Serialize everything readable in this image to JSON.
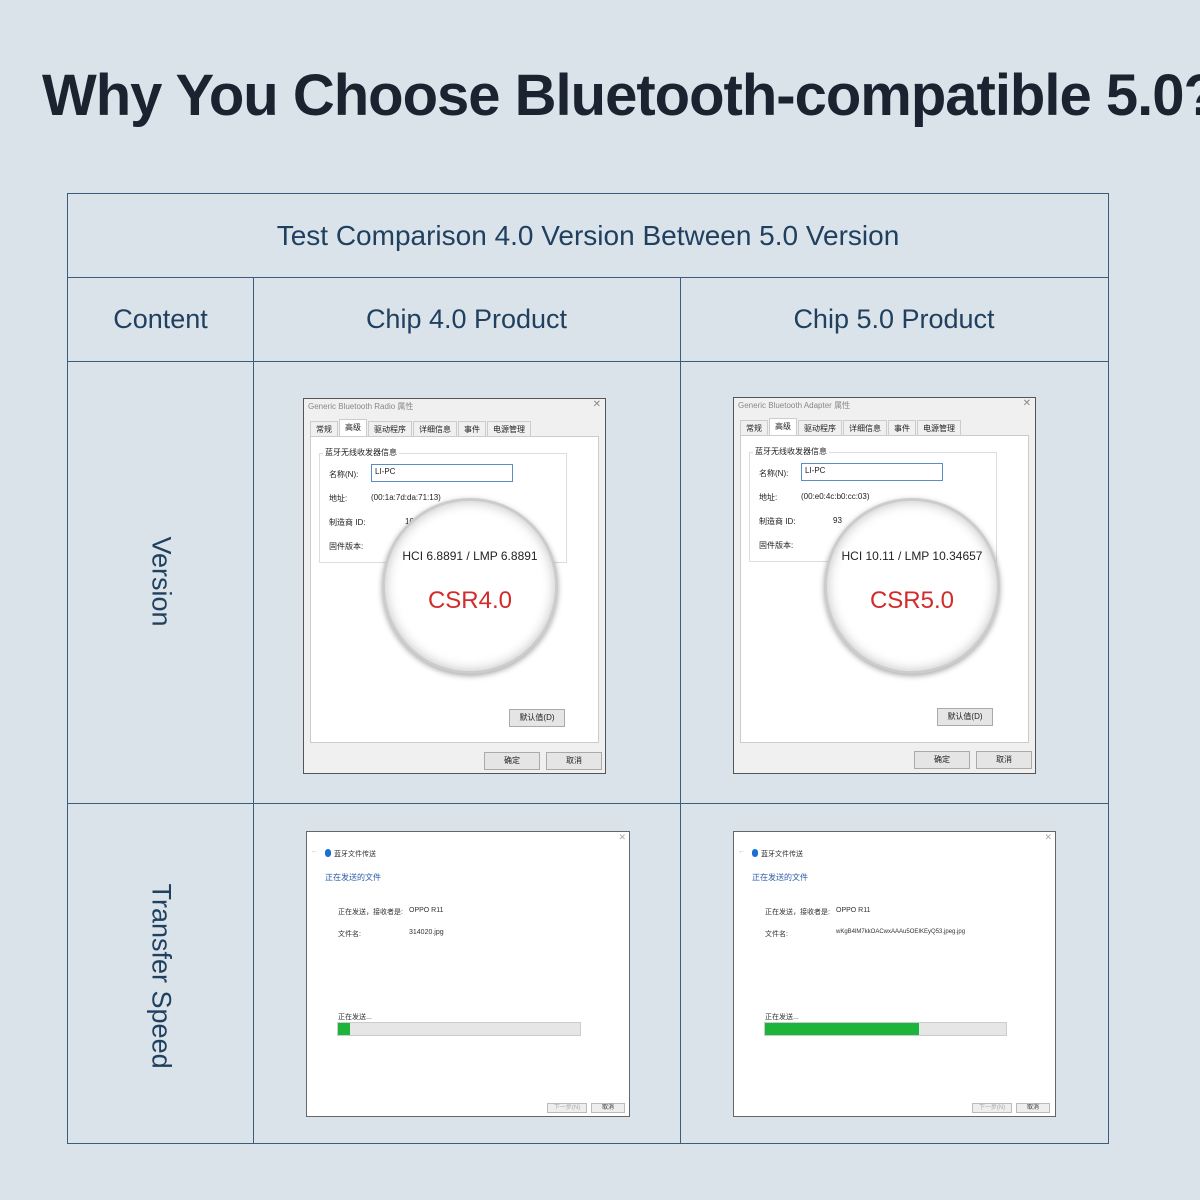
{
  "title": "Why You Choose Bluetooth-compatible 5.0?",
  "table": {
    "caption": "Test Comparison 4.0 Version Between 5.0 Version",
    "headers": [
      "Content",
      "Chip 4.0 Product",
      "Chip 5.0 Product"
    ],
    "rows": [
      "Version",
      "Transfer Speed"
    ]
  },
  "dialog_common": {
    "tabs": [
      "常规",
      "高级",
      "驱动程序",
      "详细信息",
      "事件",
      "电源管理"
    ],
    "group": "蓝牙无线收发器信息",
    "name_label": "名称(N):",
    "addr_label": "地址:",
    "mfr_label": "制造商 ID:",
    "fw_label": "固件版本:",
    "default_btn": "默认值(D)",
    "ok_btn": "确定",
    "cancel_btn": "取消"
  },
  "v4": {
    "caption": "Generic Bluetooth Radio 属性",
    "name": "LI-PC",
    "addr": "(00:1a:7d:da:71:13)",
    "mfr": "10",
    "hci": "HCI 6.8891  /  LMP 6.8891",
    "csr": "CSR4.0"
  },
  "v5": {
    "caption": "Generic Bluetooth Adapter 属性",
    "name": "LI-PC",
    "addr": "(00:e0:4c:b0:cc:03)",
    "mfr": "93",
    "hci": "HCI 10.11  /  LMP 10.34657",
    "csr": "CSR5.0"
  },
  "transfer_common": {
    "app": "蓝牙文件传送",
    "heading": "正在发送的文件",
    "to_label": "正在发送，接收者是:",
    "file_label": "文件名:",
    "status": "正在发送...",
    "next_btn": "下一步(N)",
    "cancel_btn": "取消"
  },
  "t4": {
    "to": "OPPO R11",
    "file": "314020.jpg",
    "progress_pct": 5
  },
  "t5": {
    "to": "OPPO R11",
    "file": "wKgB4lM7kkOACwxAAAu5OEIKEyQ53.jpeg.jpg",
    "progress_pct": 64
  },
  "colors": {
    "progress": "#1db43b",
    "csr": "#d32a2a",
    "border": "#3b5c7c"
  }
}
